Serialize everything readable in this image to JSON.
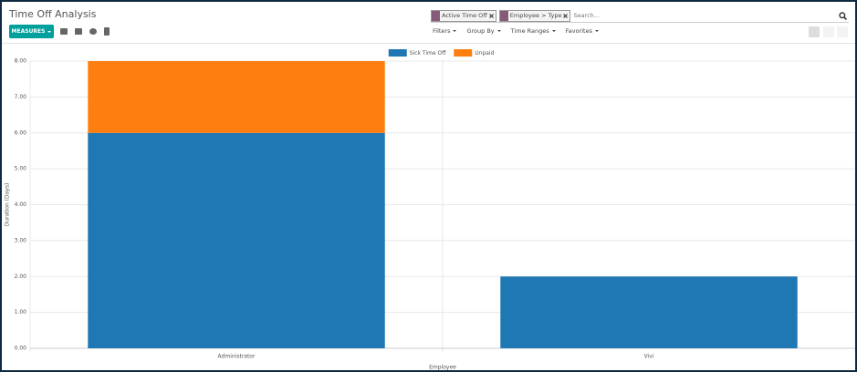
{
  "header": {
    "title": "Time Off Analysis",
    "facets": [
      "Active Time Off",
      "Employee > Type"
    ],
    "search_placeholder": "Search...",
    "measures": "MEASURES",
    "filters": "Filters",
    "group_by": "Group By",
    "time_ranges": "Time Ranges",
    "favorites": "Favorites"
  },
  "chart_data": {
    "type": "bar",
    "stacked": true,
    "categories": [
      "Administrator",
      "Vivi"
    ],
    "series": [
      {
        "name": "Sick Time Off",
        "color": "#1f77b4",
        "values": [
          6,
          2
        ]
      },
      {
        "name": "Unpaid",
        "color": "#ff7f0e",
        "values": [
          2,
          0
        ]
      }
    ],
    "ylim": [
      0,
      8
    ],
    "yticks": [
      {
        "value": 0,
        "label": "0.00"
      },
      {
        "value": 1,
        "label": "1.00"
      },
      {
        "value": 2,
        "label": "2.00"
      },
      {
        "value": 3,
        "label": "3.00"
      },
      {
        "value": 4,
        "label": "4.00"
      },
      {
        "value": 5,
        "label": "5.00"
      },
      {
        "value": 6,
        "label": "6.00"
      },
      {
        "value": 7,
        "label": "7.00"
      },
      {
        "value": 8,
        "label": "8.00"
      }
    ],
    "ylabel": "Duration (Days)",
    "xlabel": "Employee",
    "grid": true,
    "legend": "top"
  }
}
